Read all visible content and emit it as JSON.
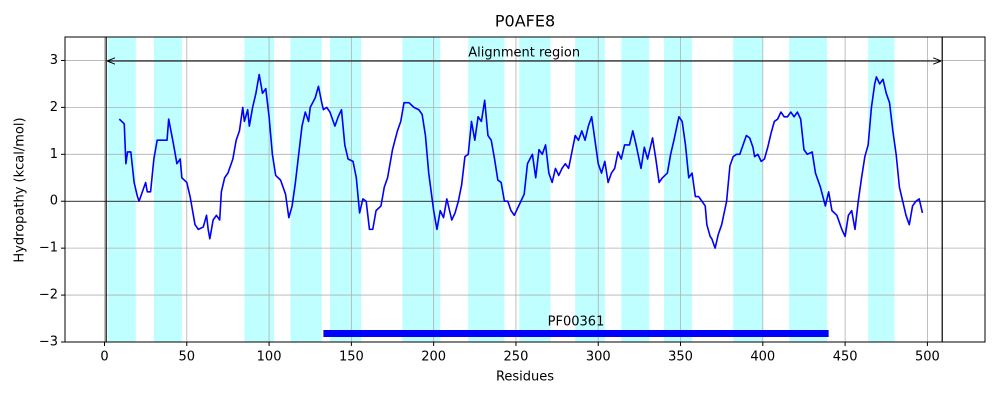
{
  "chart_data": {
    "type": "line",
    "title": "P0AFE8",
    "xlabel": "Residues",
    "ylabel": "Hydropathy (kcal/mol)",
    "xlim": [
      -24,
      535
    ],
    "ylim": [
      -3,
      3.5
    ],
    "xticks": [
      0,
      50,
      100,
      150,
      200,
      250,
      300,
      350,
      400,
      450,
      500
    ],
    "yticks": [
      {
        "value": -3,
        "label": "−3"
      },
      {
        "value": -2,
        "label": "−2"
      },
      {
        "value": -1,
        "label": "−1"
      },
      0,
      1,
      2,
      3
    ],
    "grid": true,
    "color": "#0000ff",
    "region_color": "#c0ffff",
    "regions": [
      [
        2,
        19
      ],
      [
        30,
        47
      ],
      [
        85,
        103
      ],
      [
        113,
        132
      ],
      [
        137,
        156
      ],
      [
        181,
        204
      ],
      [
        221,
        243
      ],
      [
        252,
        271
      ],
      [
        286,
        304
      ],
      [
        314,
        331
      ],
      [
        340,
        357
      ],
      [
        382,
        400
      ],
      [
        416,
        439
      ],
      [
        464,
        480
      ]
    ],
    "alignment": {
      "label": "Alignment region",
      "start": 1,
      "end": 509
    },
    "domain": {
      "label": "PF00361",
      "start": 133,
      "end": 440,
      "color": "#0000ff"
    },
    "x": [
      9,
      12,
      13,
      14,
      16,
      18,
      20,
      21,
      23,
      25,
      26,
      28,
      30,
      32,
      35,
      38,
      39,
      42,
      44,
      46,
      47,
      50,
      52,
      55,
      57,
      60,
      62,
      63,
      64,
      66,
      68,
      70,
      71,
      73,
      75,
      78,
      80,
      82,
      84,
      85,
      87,
      88,
      90,
      92,
      94,
      96,
      98,
      100,
      102,
      104,
      107,
      110,
      112,
      114,
      116,
      118,
      120,
      122,
      124,
      125,
      128,
      130,
      132,
      133,
      135,
      137,
      140,
      142,
      144,
      146,
      148,
      151,
      153,
      155,
      157,
      159,
      161,
      163,
      165,
      168,
      170,
      172,
      175,
      178,
      180,
      182,
      185,
      188,
      191,
      193,
      195,
      197,
      200,
      202,
      204,
      206,
      208,
      211,
      213,
      215,
      217,
      219,
      221,
      223,
      225,
      227,
      229,
      231,
      233,
      235,
      237,
      239,
      241,
      243,
      245,
      247,
      249,
      251,
      253,
      255,
      257,
      260,
      262,
      264,
      266,
      268,
      270,
      272,
      274,
      276,
      278,
      280,
      282,
      284,
      286,
      288,
      290,
      292,
      294,
      296,
      298,
      300,
      302,
      304,
      306,
      308,
      310,
      312,
      314,
      316,
      319,
      321,
      323,
      326,
      328,
      330,
      333,
      335,
      337,
      339,
      342,
      344,
      346,
      349,
      351,
      353,
      355,
      357,
      359,
      361,
      363,
      365,
      366,
      368,
      369,
      371,
      373,
      375,
      378,
      380,
      382,
      384,
      386,
      388,
      390,
      392,
      394,
      395,
      397,
      399,
      401,
      403,
      405,
      407,
      409,
      411,
      413,
      415,
      417,
      419,
      421,
      423,
      425,
      427,
      430,
      432,
      435,
      438,
      440,
      442,
      445,
      448,
      450,
      452,
      454,
      456,
      458,
      460,
      462,
      464,
      466,
      468,
      469,
      471,
      473,
      475,
      477,
      479,
      481,
      483,
      485,
      487,
      489,
      491,
      493,
      495,
      497
    ],
    "values": [
      1.75,
      1.65,
      0.8,
      1.05,
      1.05,
      0.4,
      0.1,
      0,
      0.2,
      0.4,
      0.2,
      0.2,
      0.9,
      1.3,
      1.3,
      1.3,
      1.75,
      1.2,
      0.8,
      0.9,
      0.5,
      0.4,
      0.1,
      -0.5,
      -0.6,
      -0.55,
      -0.3,
      -0.6,
      -0.8,
      -0.4,
      -0.3,
      -0.4,
      0.2,
      0.5,
      0.6,
      0.9,
      1.3,
      1.5,
      2.0,
      1.7,
      1.95,
      1.6,
      2.0,
      2.3,
      2.7,
      2.3,
      2.4,
      1.8,
      1.0,
      0.55,
      0.45,
      0.15,
      -0.35,
      -0.1,
      0.4,
      1.0,
      1.6,
      1.9,
      1.7,
      2.0,
      2.2,
      2.45,
      2.1,
      1.95,
      2.0,
      1.9,
      1.6,
      1.8,
      1.95,
      1.2,
      0.9,
      0.85,
      0.5,
      -0.25,
      0.05,
      0.0,
      -0.6,
      -0.6,
      -0.2,
      -0.1,
      0.3,
      0.5,
      1.1,
      1.5,
      1.7,
      2.1,
      2.1,
      2.0,
      1.95,
      1.85,
      1.4,
      0.6,
      -0.2,
      -0.6,
      -0.2,
      -0.35,
      0.05,
      -0.4,
      -0.25,
      0.0,
      0.35,
      0.95,
      1.0,
      1.7,
      1.3,
      1.8,
      1.7,
      2.15,
      1.4,
      1.3,
      0.9,
      0.45,
      0.4,
      0.0,
      0.0,
      -0.2,
      -0.3,
      -0.15,
      0.0,
      0.15,
      0.8,
      1.0,
      0.5,
      1.1,
      1.0,
      1.2,
      0.6,
      0.4,
      0.7,
      0.55,
      0.7,
      0.8,
      0.7,
      1.05,
      1.4,
      1.3,
      1.5,
      1.3,
      1.6,
      1.8,
      1.3,
      0.8,
      0.6,
      0.85,
      0.4,
      0.6,
      0.7,
      1.05,
      0.9,
      1.2,
      1.2,
      1.5,
      1.2,
      0.7,
      1.15,
      0.9,
      1.35,
      0.9,
      0.4,
      0.5,
      0.6,
      1.0,
      1.3,
      1.8,
      1.7,
      1.2,
      0.5,
      0.6,
      0.1,
      0.1,
      0.0,
      -0.1,
      -0.5,
      -0.75,
      -0.8,
      -1.0,
      -0.7,
      -0.5,
      0.0,
      0.75,
      0.95,
      1.0,
      1.0,
      1.2,
      1.4,
      1.35,
      1.15,
      0.95,
      1.0,
      0.85,
      0.9,
      1.15,
      1.45,
      1.7,
      1.75,
      1.9,
      1.8,
      1.8,
      1.9,
      1.8,
      1.9,
      1.75,
      1.1,
      1.0,
      1.05,
      0.6,
      0.3,
      -0.1,
      0.2,
      -0.2,
      -0.3,
      -0.6,
      -0.75,
      -0.3,
      -0.2,
      -0.6,
      0.0,
      0.5,
      0.95,
      1.2,
      2.0,
      2.5,
      2.65,
      2.5,
      2.6,
      2.3,
      2.1,
      1.5,
      1.0,
      0.3,
      0.0,
      -0.3,
      -0.5,
      -0.1,
      0.0,
      0.05,
      -0.25
    ]
  }
}
